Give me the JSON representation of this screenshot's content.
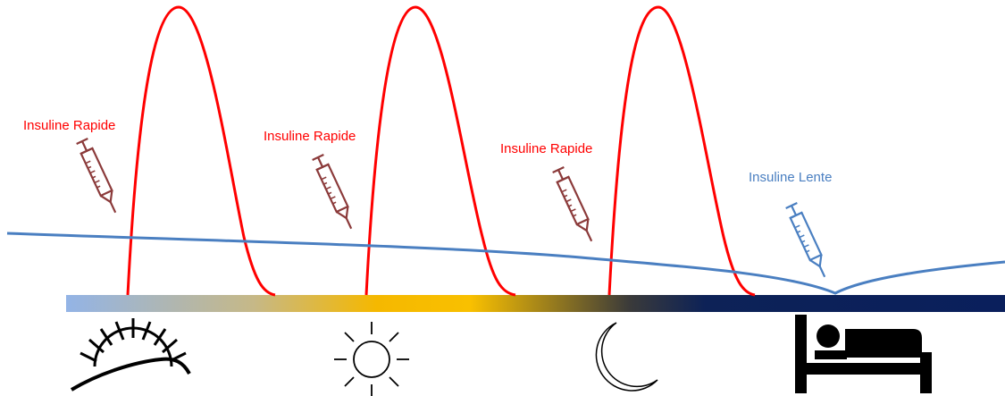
{
  "labels": {
    "morning": "Insuline Rapide",
    "noon": "Insuline Rapide",
    "evening": "Insuline Rapide",
    "night": "Insuline Lente"
  },
  "colors": {
    "rapid": "#ff0000",
    "slow": "#4a7fc1",
    "syringe_rapid": "#8b3a3a",
    "syringe_slow": "#4a7fc1",
    "day_gradient": [
      "#93b4e6",
      "#c6b887",
      "#f5b800",
      "#f9c000",
      "#3a3a3a",
      "#0d2257",
      "#0a1f5c"
    ]
  },
  "icons": [
    "sunrise-icon",
    "sun-icon",
    "moon-icon",
    "bed-icon",
    "syringe-icon"
  ]
}
